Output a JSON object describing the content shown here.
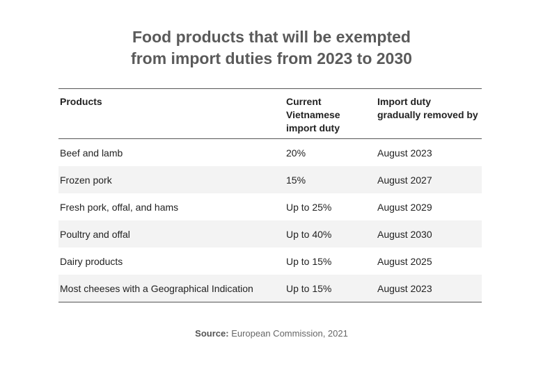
{
  "title_lines": [
    "Food products that will be exempted",
    "from import duties from 2023 to 2030"
  ],
  "chart_data": {
    "type": "table",
    "title": "Food products that will be exempted from import duties from 2023 to 2030",
    "columns": [
      "Products",
      "Current Vietnamese import duty",
      "Import duty gradually removed by"
    ],
    "rows": [
      [
        "Beef and lamb",
        "20%",
        "August 2023"
      ],
      [
        "Frozen pork",
        "15%",
        "August 2027"
      ],
      [
        "Fresh pork, offal, and hams",
        "Up to 25%",
        "August 2029"
      ],
      [
        "Poultry and offal",
        "Up to 40%",
        "August 2030"
      ],
      [
        "Dairy products",
        "Up to 15%",
        "August 2025"
      ],
      [
        "Most cheeses with a Geographical Indication",
        "Up to 15%",
        "August 2023"
      ]
    ]
  },
  "header_lines": {
    "col2": [
      "Current",
      "Vietnamese",
      "import duty"
    ],
    "col3": [
      "Import duty",
      "gradually removed by"
    ]
  },
  "source": {
    "label": "Source:",
    "text": "European Commission, 2021"
  }
}
